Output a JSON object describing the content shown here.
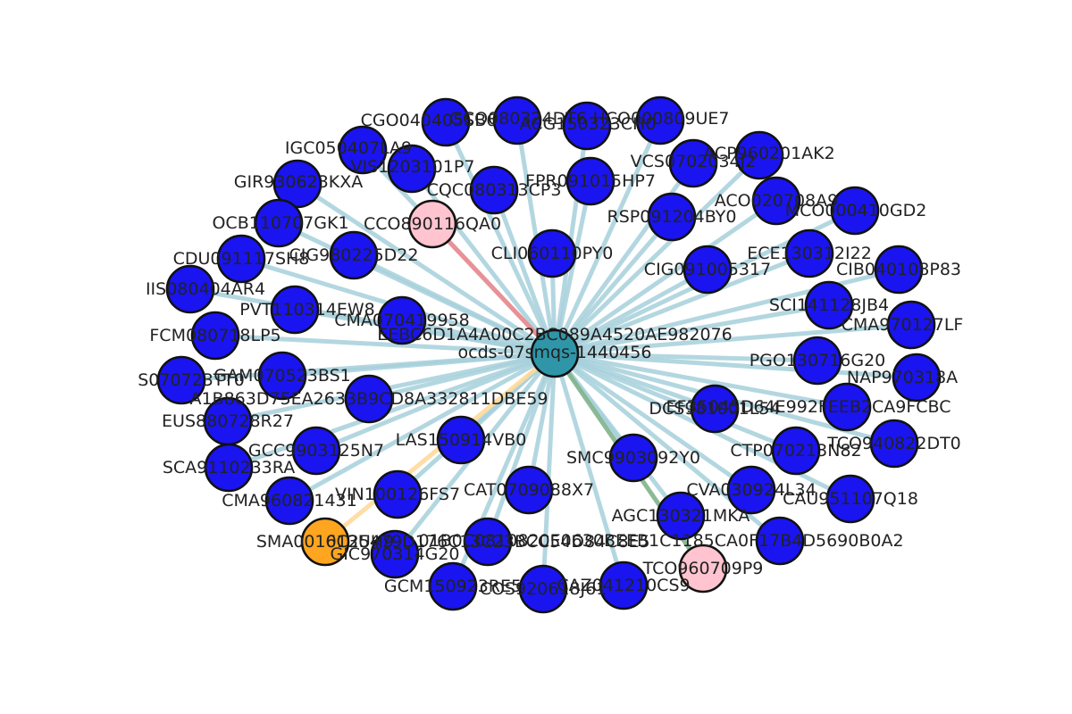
{
  "colors": {
    "node_default": "#1a14f0",
    "node_hub": "#2e96a8",
    "node_pink": "#ffc4cf",
    "node_orange": "#ffa51f",
    "edge_default": "#a6d0da",
    "edge_red": "#ee8a8e",
    "edge_orange": "#ffd99a",
    "edge_green": "#7fb38a"
  },
  "hub": {
    "label_line1": "EEBC6D1A4A00C2BC089A4520AE982076",
    "label_line2": "ocds-07smqs-1440456"
  },
  "nodes": [
    {
      "id": "n_cgo",
      "label": "CGO040405SB6",
      "kind": "default"
    },
    {
      "id": "n_gco",
      "label": "GCO080324DT6",
      "kind": "default"
    },
    {
      "id": "n_acg",
      "label": "ACG150323CH0",
      "kind": "default"
    },
    {
      "id": "n_hco",
      "label": "HCO000809UE7",
      "kind": "default"
    },
    {
      "id": "n_igc",
      "label": "IGC050407LA9",
      "kind": "default"
    },
    {
      "id": "n_vis",
      "label": "VIS1203101P7",
      "kind": "default"
    },
    {
      "id": "n_acp",
      "label": "ACP960201AK2",
      "kind": "default"
    },
    {
      "id": "n_vcs",
      "label": "VCS0702034J2",
      "kind": "default"
    },
    {
      "id": "n_gir",
      "label": "GIR930623KXA",
      "kind": "default"
    },
    {
      "id": "n_fpr",
      "label": "FPR091015HP7",
      "kind": "default"
    },
    {
      "id": "n_cqc",
      "label": "CQC080313CP3",
      "kind": "default"
    },
    {
      "id": "n_aco",
      "label": "ACO020708A9",
      "kind": "default"
    },
    {
      "id": "n_mco",
      "label": "MCO000410GD2",
      "kind": "default"
    },
    {
      "id": "n_ocb",
      "label": "OCB110707GK1",
      "kind": "default"
    },
    {
      "id": "n_cco",
      "label": "CCO890116QA0",
      "kind": "pink"
    },
    {
      "id": "n_rsp",
      "label": "RSP091204BY0",
      "kind": "default"
    },
    {
      "id": "n_cig0225",
      "label": "CIG980225D22",
      "kind": "default"
    },
    {
      "id": "n_cdu",
      "label": "CDU091117SH8",
      "kind": "default"
    },
    {
      "id": "n_cli",
      "label": "CLI060110PY0",
      "kind": "default"
    },
    {
      "id": "n_ece",
      "label": "ECE130312I22",
      "kind": "default"
    },
    {
      "id": "n_cib",
      "label": "CIB040108P83",
      "kind": "default"
    },
    {
      "id": "n_cig1005",
      "label": "CIG091005317",
      "kind": "default"
    },
    {
      "id": "n_iis",
      "label": "IIS080404AR4",
      "kind": "default"
    },
    {
      "id": "n_sci",
      "label": "SCI141128JB4",
      "kind": "default"
    },
    {
      "id": "n_pvt",
      "label": "PVT110314EW8",
      "kind": "default"
    },
    {
      "id": "n_cma0704",
      "label": "CMA070419958",
      "kind": "default"
    },
    {
      "id": "n_cma9701",
      "label": "CMA970127LF",
      "kind": "default"
    },
    {
      "id": "n_fcm",
      "label": "FCM080718LP5",
      "kind": "default"
    },
    {
      "id": "n_pgo",
      "label": "PGO130716G20",
      "kind": "default"
    },
    {
      "id": "n_gam",
      "label": "GAM070523BS1",
      "kind": "default"
    },
    {
      "id": "n_s0707",
      "label": "S070723TT0",
      "kind": "default"
    },
    {
      "id": "n_nap",
      "label": "NAP970318A",
      "kind": "default"
    },
    {
      "id": "n_a1b",
      "label": "A1B863D75EA2633B9CD8A332811DBE59",
      "kind": "default"
    },
    {
      "id": "n_ef3",
      "label": "EF35045D64E992FEEB2CA9FCBC",
      "kind": "default"
    },
    {
      "id": "n_dcs",
      "label": "DCS981001L54",
      "kind": "default"
    },
    {
      "id": "n_eus",
      "label": "EUS880728R27",
      "kind": "default"
    },
    {
      "id": "n_las",
      "label": "LAS150914VB0",
      "kind": "default"
    },
    {
      "id": "n_gcc",
      "label": "GCC9903125N7",
      "kind": "default"
    },
    {
      "id": "n_ctp",
      "label": "CTP070213N82",
      "kind": "default"
    },
    {
      "id": "n_tco0822",
      "label": "TCO940822DT0",
      "kind": "default"
    },
    {
      "id": "n_sca",
      "label": "SCA9110233RA",
      "kind": "default"
    },
    {
      "id": "n_smc",
      "label": "SMC9903092Y0",
      "kind": "default"
    },
    {
      "id": "n_vin",
      "label": "VIN100126FS7",
      "kind": "default"
    },
    {
      "id": "n_cat",
      "label": "CAT0709088X7",
      "kind": "default"
    },
    {
      "id": "n_cva",
      "label": "CVA030924L34",
      "kind": "default"
    },
    {
      "id": "n_cau",
      "label": "CAU951107Q18",
      "kind": "default"
    },
    {
      "id": "n_cma9608",
      "label": "CMA960821431",
      "kind": "default"
    },
    {
      "id": "n_agc",
      "label": "AGC130321MKA",
      "kind": "default"
    },
    {
      "id": "n_sma",
      "label": "SMA001013UH9",
      "kind": "orange"
    },
    {
      "id": "n_01b",
      "label": "01B0C0810820E0630BEEB1C1185CA0F17B4D5690B0A2",
      "kind": "default"
    },
    {
      "id": "n_6c2",
      "label": "6C25479D176C13C23BCC54D84C8E5",
      "kind": "default"
    },
    {
      "id": "n_gic",
      "label": "GIC970314G20",
      "kind": "default"
    },
    {
      "id": "n_tco9607",
      "label": "TCO960709P9",
      "kind": "pink"
    },
    {
      "id": "n_gcm",
      "label": "GCM150923RE5",
      "kind": "default"
    },
    {
      "id": "n_cos",
      "label": "COS920618J61",
      "kind": "default"
    },
    {
      "id": "n_caz",
      "label": "CAZ041210CS9",
      "kind": "default"
    }
  ],
  "edges": [
    {
      "to": "n_cco",
      "kind": "red"
    },
    {
      "to": "n_sma",
      "kind": "orange"
    },
    {
      "to": "n_tco9607",
      "kind": "green"
    }
  ]
}
